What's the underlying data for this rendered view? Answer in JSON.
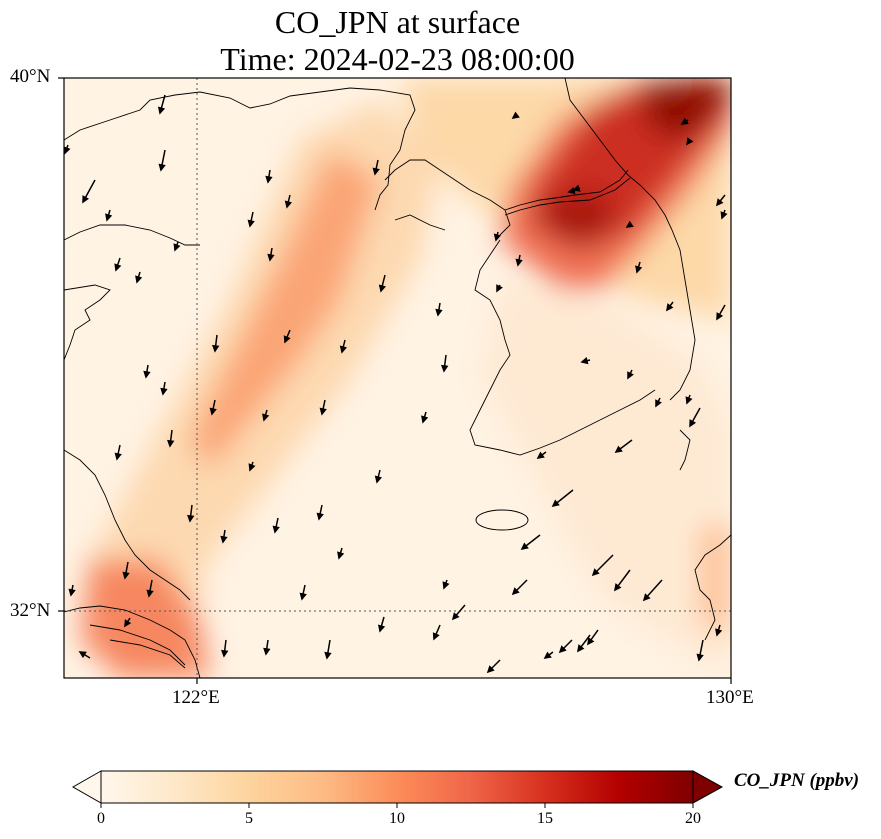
{
  "title": {
    "line1": "CO_JPN at surface",
    "line2": "Time: 2024-02-23 08:00:00"
  },
  "axes": {
    "lat_labels": [
      "40°N",
      "32°N"
    ],
    "lon_labels": [
      "122°E",
      "130°E"
    ],
    "lat_range": [
      31,
      40
    ],
    "lon_range": [
      120,
      130
    ],
    "gridlines": {
      "lats": [
        32,
        40
      ],
      "lons": [
        122,
        130
      ],
      "style": "dotted"
    }
  },
  "colorbar": {
    "label": "CO_JPN (ppbv)",
    "ticks": [
      "0",
      "5",
      "10",
      "15",
      "20"
    ],
    "range": [
      0,
      20
    ],
    "extend": "both",
    "colormap": "OrRd",
    "colors": [
      "#fff7ec",
      "#fee8c8",
      "#fdd49e",
      "#fdbb84",
      "#fc8d59",
      "#ef6548",
      "#d7301f",
      "#b30000",
      "#7f0000"
    ]
  },
  "map": {
    "variable": "CO_JPN",
    "level": "surface",
    "features": [
      "coastlines",
      "borders",
      "wind-vectors"
    ],
    "wind_direction": "from north / northeast"
  }
}
